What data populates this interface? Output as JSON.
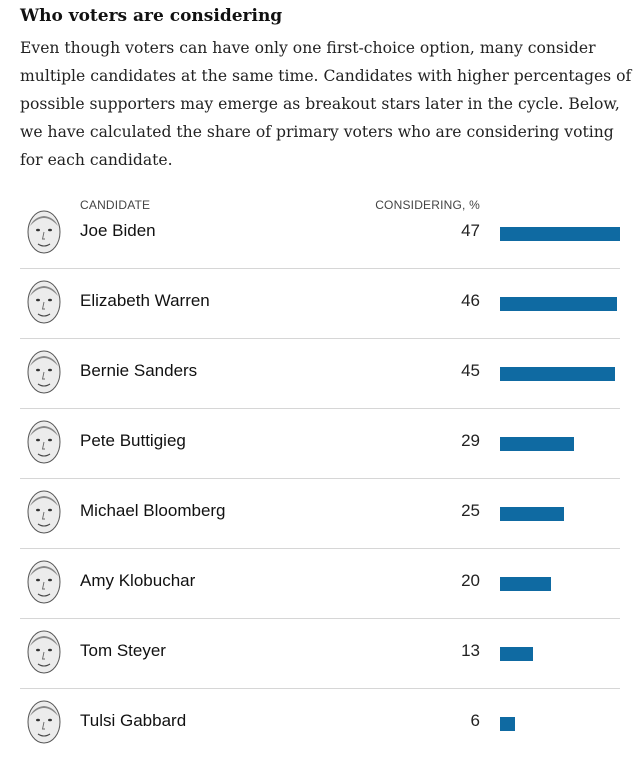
{
  "header": {
    "title": "Who voters are considering",
    "description": "Even though voters can have only one first-choice option, many consider multiple candidates at the same time. Candidates with higher percentages of possible supporters may emerge as breakout stars later in the cycle. Below, we have calculated the share of primary voters who are considering voting for each candidate."
  },
  "chart_data": {
    "type": "bar",
    "column_headers": [
      "CANDIDATE",
      "CONSIDERING, %"
    ],
    "categories": [
      "Joe Biden",
      "Elizabeth Warren",
      "Bernie Sanders",
      "Pete Buttigieg",
      "Michael Bloomberg",
      "Amy Klobuchar",
      "Tom Steyer",
      "Tulsi Gabbard"
    ],
    "values": [
      47,
      46,
      45,
      29,
      25,
      20,
      13,
      6
    ],
    "bar_color": "#0f6aa2",
    "xlim": [
      0,
      47
    ]
  }
}
